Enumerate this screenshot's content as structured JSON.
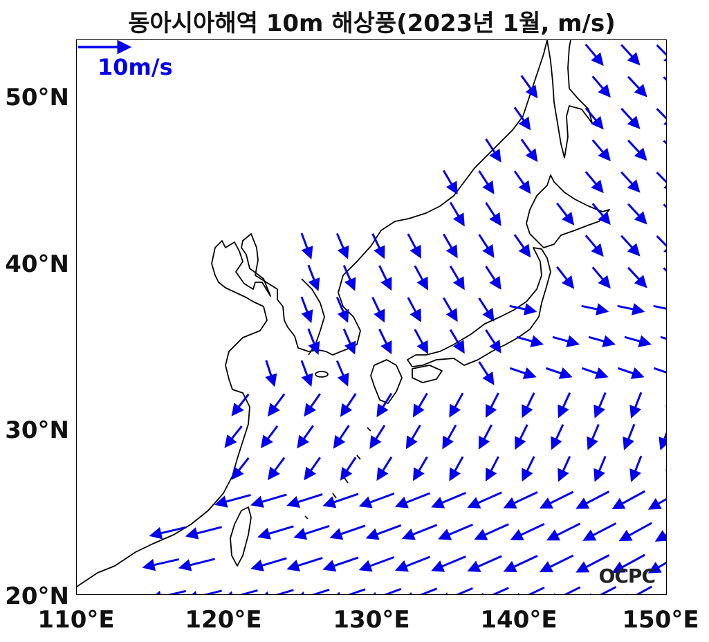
{
  "title": "동아시아해역 10m 해상풍(2023년 1월, m/s)",
  "reference_vector": {
    "label": "10m/s",
    "color": "#0000ee"
  },
  "credit": "OCPC",
  "axes": {
    "y_ticks": [
      "50°N",
      "40°N",
      "30°N",
      "20°N"
    ],
    "x_ticks": [
      "110°E",
      "120°E",
      "130°E",
      "140°E",
      "150°E"
    ],
    "lon_range": [
      110,
      150
    ],
    "lat_range": [
      20,
      53.5
    ]
  },
  "colors": {
    "arrow": "#0000ee",
    "coast": "#000000"
  }
}
